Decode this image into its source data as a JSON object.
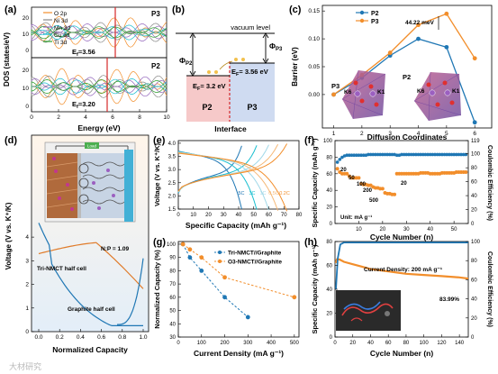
{
  "figure": {
    "panel_labels": [
      "(a)",
      "(b)",
      "(c)",
      "(d)",
      "(e)",
      "(f)",
      "(g)",
      "(h)"
    ],
    "watermark": "大材研究",
    "colors": {
      "red": "#d62728",
      "blue": "#1f77b4",
      "orange": "#f28e2b",
      "teal": "#17becf",
      "gray": "#888888",
      "green": "#2ca02c",
      "purple": "#9467bd",
      "p3_tint": "#c9d9ef",
      "p2_tint": "#f3c7c7"
    }
  },
  "panel_a": {
    "ylabel": "DOS (states/eV)",
    "xlabel": "Energy (eV)",
    "legend": [
      "O 2p",
      "Ni 3d",
      "Mn 3d",
      "Cu 3d",
      "Ti 3d"
    ],
    "top": {
      "name": "P3",
      "ef_label": "E",
      "ef_sub": "f",
      "ef_value": "=3.56",
      "ef": 3.56
    },
    "bottom": {
      "name": "P2",
      "ef_label": "E",
      "ef_sub": "f",
      "ef_value": "=3.20",
      "ef": 3.2
    },
    "yticks_top": [
      "0",
      "10",
      "20"
    ],
    "yticks_bottom": [
      "0",
      "10",
      "20"
    ],
    "xticks": [
      "0",
      "2",
      "4",
      "6",
      "8",
      "10"
    ],
    "xlim": [
      0,
      10
    ]
  },
  "panel_b": {
    "vacuum_label": "vacuum level",
    "phi_p2": "Φ",
    "phi_p2_sub": "P2",
    "phi_p3": "Φ",
    "phi_p3_sub": "P3",
    "ef_p2": "E",
    "ef_p2_sub": "F",
    "ef_p2_val": "= 3.2 eV",
    "ef_p3": "E",
    "ef_p3_sub": "F",
    "ef_p3_val": "= 3.56 eV",
    "p2_label": "P2",
    "p3_label": "P3",
    "interface_label": "Interface"
  },
  "panel_c": {
    "ylabel": "Barrier (eV)",
    "xlabel": "Diffusion Coordinates",
    "annotation": "44.22 meV",
    "legend": [
      "P2",
      "P3"
    ],
    "inset_p3": "P3",
    "inset_p2": "P2",
    "k_labels_left": [
      "K6",
      "K1"
    ],
    "k_labels_right": [
      "K6",
      "K1"
    ],
    "yticks": [
      "0.00",
      "0.05",
      "0.10",
      "0.15"
    ],
    "xticks": [
      "1",
      "2",
      "3",
      "4",
      "5",
      "6"
    ]
  },
  "panel_d": {
    "ylabel": "Voltage (V vs. K⁺/K)",
    "xlabel": "Normalized Capacity",
    "ratio": "N:P = 1.09",
    "cathode_label": "Tri-NMCT half cell",
    "anode_label": "Graphite half cell",
    "load_label": "Load",
    "xticks": [
      "0.0",
      "0.2",
      "0.4",
      "0.6",
      "0.8",
      "1.0"
    ],
    "yticks": [
      "0",
      "1",
      "2",
      "3",
      "4"
    ]
  },
  "panel_e": {
    "ylabel": "Voltage (V vs. K⁺/K)",
    "xlabel": "Specific Capacity (mAh g⁻¹)",
    "legend": [
      "5C",
      "3C",
      "1C",
      "0.5C",
      "0.2C"
    ],
    "xticks": [
      "0",
      "10",
      "20",
      "30",
      "40",
      "50",
      "60",
      "70",
      "80"
    ],
    "yticks": [
      "1.5",
      "2.0",
      "2.5",
      "3.0",
      "3.5",
      "4.0"
    ]
  },
  "panel_f": {
    "ylabel_left": "Specific Capacity (mAh g⁻¹)",
    "ylabel_right": "Coulombic Efficiency (%)",
    "xlabel": "Cycle Number (n)",
    "unit_label": "Unit: mA g⁻¹",
    "rate_labels": [
      "20",
      "50",
      "100",
      "200",
      "500",
      "20"
    ],
    "yticks_left": [
      "0",
      "20",
      "40",
      "60",
      "80",
      "100"
    ],
    "yticks_right": [
      "0",
      "20",
      "40",
      "60",
      "80",
      "100",
      "119"
    ],
    "xticks": [
      "10",
      "20",
      "30",
      "40",
      "50"
    ]
  },
  "panel_g": {
    "ylabel": "Normalized Capacity (%)",
    "xlabel": "Current Density (mA g⁻¹)",
    "legend": [
      "Tri-NMCT//Graphite",
      "O3-NMCT//Graphite"
    ],
    "xticks": [
      "0",
      "100",
      "200",
      "300",
      "400",
      "500"
    ],
    "yticks": [
      "30",
      "40",
      "50",
      "60",
      "70",
      "80",
      "90",
      "100"
    ]
  },
  "panel_h": {
    "ylabel_left": "Specific Capacity (mAh g⁻¹)",
    "ylabel_right": "Coulombic Efficiency (%)",
    "xlabel": "Cycle Number (n)",
    "current_label": "Current Density: 200 mA g⁻¹",
    "retention": "83.99%",
    "yticks_left": [
      "0",
      "20",
      "40",
      "60",
      "80"
    ],
    "yticks_right": [
      "0",
      "20",
      "40",
      "60",
      "80",
      "100"
    ],
    "xticks": [
      "0",
      "20",
      "40",
      "60",
      "80",
      "100",
      "120",
      "140"
    ]
  },
  "chart_data": [
    {
      "id": "c",
      "type": "line",
      "x": [
        1,
        2,
        3,
        4,
        5,
        6
      ],
      "series": [
        {
          "name": "P2",
          "color": "#1f77b4",
          "values": [
            0.0,
            0.03,
            0.07,
            0.1,
            0.085,
            -0.05
          ]
        },
        {
          "name": "P3",
          "color": "#f28e2b",
          "values": [
            0.0,
            0.035,
            0.075,
            0.125,
            0.145,
            0.065
          ]
        }
      ],
      "xlabel": "Diffusion Coordinates",
      "ylabel": "Barrier (eV)",
      "ylim": [
        -0.06,
        0.16
      ],
      "xlim": [
        0.6,
        6.6
      ]
    },
    {
      "id": "f",
      "type": "scatter",
      "cycles_capacity": [
        1,
        2,
        3,
        4,
        5,
        6,
        7,
        8,
        9,
        10,
        11,
        12,
        13,
        14,
        15,
        16,
        17,
        18,
        19,
        20,
        21,
        22,
        23,
        24,
        25,
        26,
        27,
        28,
        29,
        30,
        31,
        32,
        33,
        34,
        35,
        36,
        37,
        38,
        39,
        40,
        41,
        42,
        43,
        44,
        45,
        46,
        47,
        48,
        49,
        50,
        51,
        52,
        53,
        54,
        55
      ],
      "capacity": [
        66,
        62,
        60,
        60,
        60,
        57,
        55,
        55,
        55,
        55,
        48,
        47,
        47,
        46,
        46,
        44,
        43,
        43,
        42,
        42,
        37,
        36,
        36,
        35,
        35,
        60,
        60,
        60,
        60,
        60,
        60,
        60,
        60,
        60,
        60,
        61,
        61,
        61,
        61,
        60,
        60,
        60,
        60,
        60,
        61,
        61,
        61,
        61,
        61,
        61,
        62,
        62,
        62,
        62,
        62
      ],
      "ce": [
        88,
        92,
        95,
        97,
        98,
        98,
        98,
        98,
        98,
        98,
        98,
        98,
        98,
        99,
        99,
        99,
        99,
        99,
        99,
        99,
        99,
        99,
        99,
        99,
        99,
        98,
        98,
        99,
        99,
        99,
        99,
        99,
        99,
        99,
        99,
        99,
        99,
        99,
        99,
        99,
        99,
        99,
        99,
        99,
        99,
        99,
        99,
        99,
        99,
        99,
        99,
        99,
        99,
        99,
        99
      ],
      "xlim": [
        0,
        56
      ],
      "ylim_left": [
        0,
        100
      ],
      "ylim_right": [
        0,
        119
      ]
    },
    {
      "id": "g",
      "type": "scatter",
      "series": [
        {
          "name": "Tri-NMCT//Graphite",
          "color": "#1f77b4",
          "x": [
            20,
            50,
            100,
            200,
            300
          ],
          "values": [
            100,
            90,
            80,
            60,
            45
          ]
        },
        {
          "name": "O3-NMCT//Graphite",
          "color": "#f28e2b",
          "x": [
            20,
            50,
            100,
            200,
            500
          ],
          "values": [
            100,
            96,
            90,
            75,
            60
          ]
        }
      ],
      "xlim": [
        0,
        520
      ],
      "ylim": [
        30,
        102
      ]
    },
    {
      "id": "h",
      "type": "line",
      "capacity_points": [
        [
          1,
          62
        ],
        [
          2,
          65
        ],
        [
          5,
          65
        ],
        [
          10,
          63
        ],
        [
          20,
          61
        ],
        [
          30,
          59
        ],
        [
          40,
          57
        ],
        [
          60,
          55
        ],
        [
          80,
          53
        ],
        [
          100,
          52
        ],
        [
          120,
          51
        ],
        [
          140,
          50
        ],
        [
          150,
          49
        ]
      ],
      "ce_points": [
        [
          1,
          50
        ],
        [
          3,
          82
        ],
        [
          6,
          97
        ],
        [
          10,
          99
        ],
        [
          150,
          99
        ]
      ],
      "xlim": [
        0,
        150
      ],
      "ylim_left": [
        0,
        80
      ],
      "ylim_right": [
        0,
        100
      ]
    }
  ]
}
